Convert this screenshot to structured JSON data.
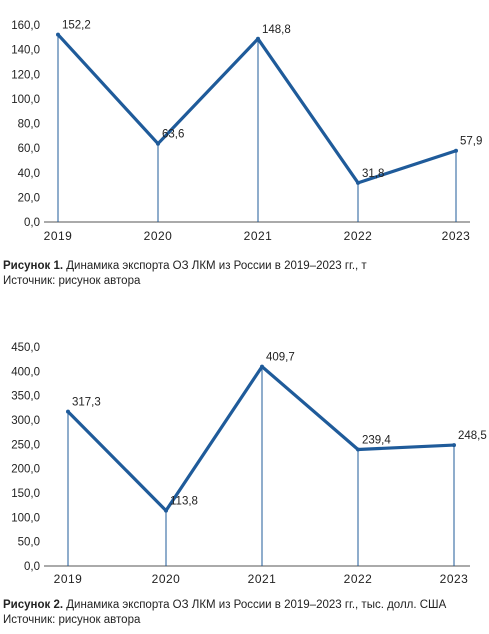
{
  "chart_data": [
    {
      "type": "line",
      "categories": [
        "2019",
        "2020",
        "2021",
        "2022",
        "2023"
      ],
      "values": [
        152.2,
        63.6,
        148.8,
        31.8,
        57.9
      ],
      "value_labels": [
        "152,2",
        "63,6",
        "148,8",
        "31,8",
        "57,9"
      ],
      "yticks": [
        "0,0",
        "20,0",
        "40,0",
        "60,0",
        "80,0",
        "100,0",
        "120,0",
        "140,0",
        "160,0"
      ],
      "ylim": [
        0,
        160
      ],
      "grid": false,
      "line_color": "#1f5b9a",
      "caption_prefix": "Рисунок 1.",
      "caption_text": "Динамика экспорта ОЗ ЛКМ из России в 2019–2023 гг., т",
      "source": "Источник: рисунок автора"
    },
    {
      "type": "line",
      "categories": [
        "2019",
        "2020",
        "2021",
        "2022",
        "2023"
      ],
      "values": [
        317.3,
        113.8,
        409.7,
        239.4,
        248.5
      ],
      "value_labels": [
        "317,3",
        "113,8",
        "409,7",
        "239,4",
        "248,5"
      ],
      "yticks": [
        "0,0",
        "50,0",
        "100,0",
        "150,0",
        "200,0",
        "250,0",
        "300,0",
        "350,0",
        "400,0",
        "450,0"
      ],
      "ylim": [
        0,
        450
      ],
      "grid": false,
      "line_color": "#1f5b9a",
      "caption_prefix": "Рисунок 2.",
      "caption_text": "Динамика экспорта ОЗ ЛКМ из России в 2019–2023 гг., тыс. долл. США",
      "source": "Источник: рисунок автора"
    }
  ]
}
